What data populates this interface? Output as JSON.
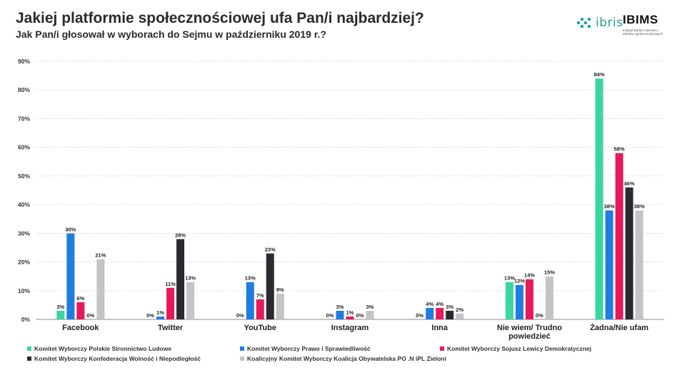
{
  "header": {
    "title": "Jakiej platformie społecznościowej ufa Pan/i najbardziej?",
    "subtitle": "Jak Pan/i głosował w wyborach do Sejmu w październiku 2019 r.?"
  },
  "logos": {
    "ibris_text": "ibris",
    "ibims_text": "IBIMS",
    "ibims_sub": "Instytut Badań Internetu i Mediów Społecznościowych"
  },
  "colors": {
    "psl": "#3ad6a0",
    "pis": "#1f7de0",
    "sld": "#e8195a",
    "konf": "#2a2a30",
    "ko": "#c4c4c8"
  },
  "chart_data": {
    "type": "bar",
    "title": "Jakiej platformie społecznościowej ufa Pan/i najbardziej?",
    "ylim": [
      0,
      90
    ],
    "yticks": [
      "0%",
      "10%",
      "20%",
      "30%",
      "40%",
      "50%",
      "60%",
      "70%",
      "80%",
      "90%"
    ],
    "grid": true,
    "legend_position": "bottom",
    "categories": [
      "Facebook",
      "Twitter",
      "YouTube",
      "Instagram",
      "Inna",
      "Nie wiem/ Trudno powiedzieć",
      "Żadna/Nie ufam"
    ],
    "series": [
      {
        "name": "Komitet Wyborczy Polskie Stronnictwo Ludowe",
        "color": "#3ad6a0",
        "values": [
          3,
          0,
          0,
          0,
          0,
          13,
          84
        ]
      },
      {
        "name": "Komitet Wyborczy Prawo i Sprawiedliwość",
        "color": "#1f7de0",
        "values": [
          30,
          1,
          13,
          3,
          4,
          12,
          38
        ]
      },
      {
        "name": "Komitet Wyborczy Sojusz Lewicy Demokratycznej",
        "color": "#e8195a",
        "values": [
          6,
          11,
          7,
          1,
          4,
          14,
          58
        ]
      },
      {
        "name": "Komitet Wyborczy Konfederacja Wolność i Niepodległość",
        "color": "#2a2a30",
        "values": [
          0,
          28,
          23,
          0,
          3,
          0,
          46
        ]
      },
      {
        "name": "Koalicyjny Komitet Wyborczy Koalicja Obywatelska PO .N iPL Zieloni",
        "color": "#c4c4c8",
        "values": [
          21,
          13,
          9,
          3,
          2,
          15,
          38
        ]
      }
    ]
  }
}
